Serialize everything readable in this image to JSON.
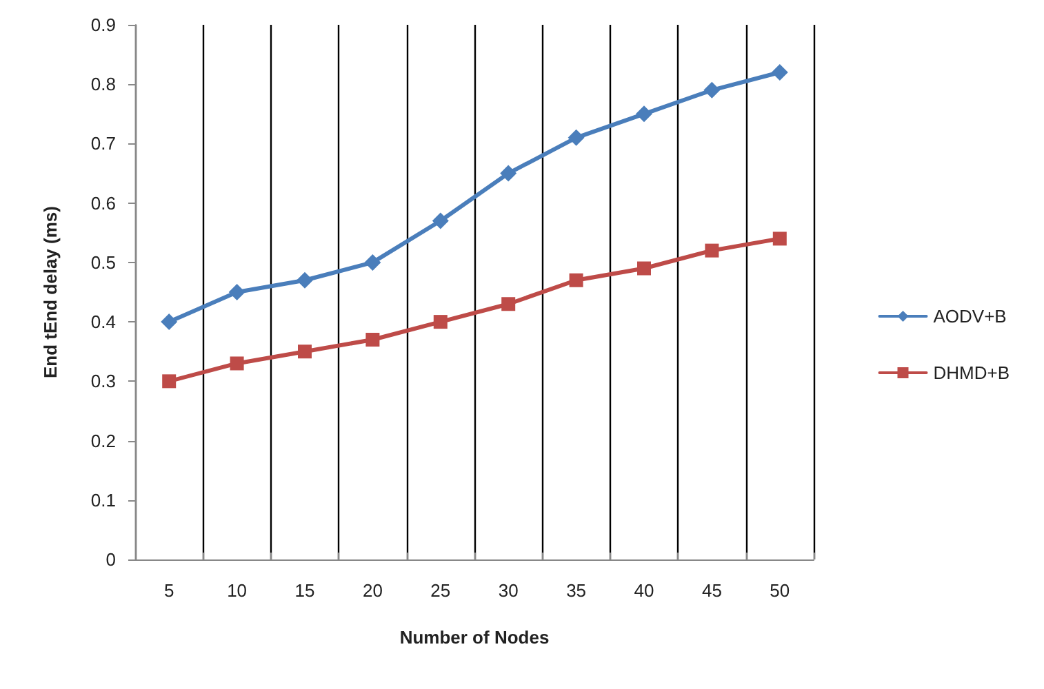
{
  "chart_data": {
    "type": "line",
    "xlabel": "Number of Nodes",
    "ylabel": "End tEnd delay (ms)",
    "categories": [
      "5",
      "10",
      "15",
      "20",
      "25",
      "30",
      "35",
      "40",
      "45",
      "50"
    ],
    "series": [
      {
        "name": "AODV+B",
        "color": "#4a7ebb",
        "marker": "diamond",
        "values": [
          0.4,
          0.45,
          0.47,
          0.5,
          0.57,
          0.65,
          0.71,
          0.75,
          0.79,
          0.82
        ]
      },
      {
        "name": "DHMD+B",
        "color": "#be4b48",
        "marker": "square",
        "values": [
          0.3,
          0.33,
          0.35,
          0.37,
          0.4,
          0.43,
          0.47,
          0.49,
          0.52,
          0.54
        ]
      }
    ],
    "ylim": [
      0,
      0.9
    ],
    "yticks": [
      0,
      0.1,
      0.2,
      0.3,
      0.4,
      0.5,
      0.6,
      0.7,
      0.8,
      0.9
    ],
    "grid": "x",
    "legend": "right",
    "line_style": "solid"
  }
}
